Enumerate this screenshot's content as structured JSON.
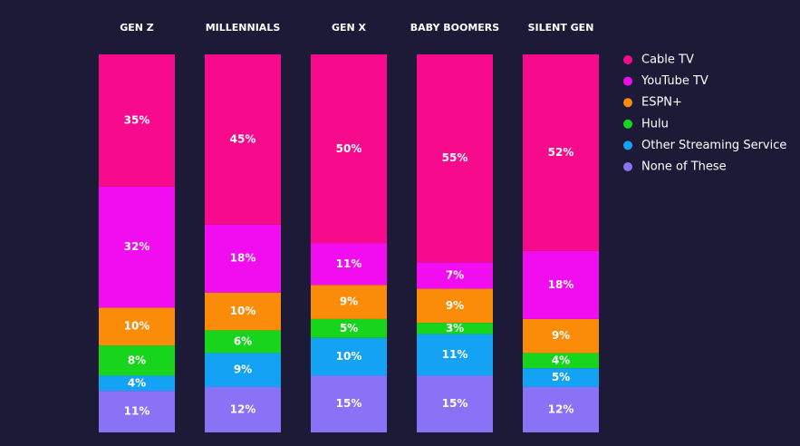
{
  "chart_data": {
    "type": "stacked_bar",
    "categories": [
      "GEN Z",
      "MILLENNIALS",
      "GEN X",
      "BABY BOOMERS",
      "SILENT GEN"
    ],
    "series": [
      {
        "name": "Cable TV",
        "color": "#f70a8c",
        "values": [
          35,
          45,
          50,
          55,
          52
        ],
        "value_labels": [
          "35%",
          "45%",
          "50%",
          "55%",
          "52%"
        ]
      },
      {
        "name": "YouTube TV",
        "color": "#f20df0",
        "values": [
          32,
          18,
          11,
          7,
          18
        ],
        "value_labels": [
          "32%",
          "18%",
          "11%",
          "7%",
          "18%"
        ]
      },
      {
        "name": "ESPN+",
        "color": "#fb8c0a",
        "values": [
          10,
          10,
          9,
          9,
          9
        ],
        "value_labels": [
          "10%",
          "10%",
          "9%",
          "9%",
          "9%"
        ]
      },
      {
        "name": "Hulu",
        "color": "#17d41c",
        "values": [
          8,
          6,
          5,
          3,
          4
        ],
        "value_labels": [
          "8%",
          "6%",
          "5%",
          "3%",
          "4%"
        ]
      },
      {
        "name": "Other Streaming Service",
        "color": "#14a2f5",
        "values": [
          4,
          9,
          10,
          11,
          5
        ],
        "value_labels": [
          "4%",
          "9%",
          "10%",
          "11%",
          "5%"
        ]
      },
      {
        "name": "None of These",
        "color": "#8a72f7",
        "values": [
          11,
          12,
          15,
          15,
          12
        ],
        "value_labels": [
          "11%",
          "12%",
          "15%",
          "15%",
          "12%"
        ]
      }
    ],
    "legend": "right"
  }
}
